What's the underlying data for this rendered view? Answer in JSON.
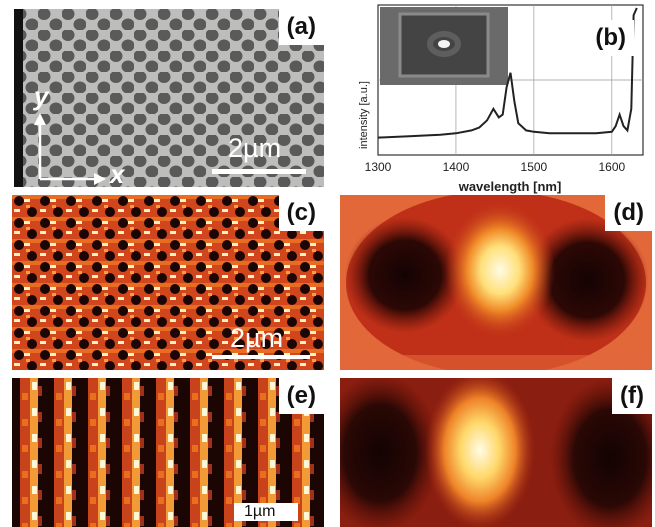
{
  "panels": {
    "a": {
      "label": "(a)",
      "scale_bar": "2µm",
      "axis_x": "x",
      "axis_y": "y"
    },
    "b": {
      "label": "(b)"
    },
    "c": {
      "label": "(c)",
      "scale_bar": "2µm"
    },
    "d": {
      "label": "(d)"
    },
    "e": {
      "label": "(e)",
      "scale_bar": "1µm"
    },
    "f": {
      "label": "(f)"
    }
  },
  "colors": {
    "heat_dark": "#1a0604",
    "heat_mid": "#c0301c",
    "heat_orange": "#e8701c",
    "heat_bright": "#fffae0",
    "sem_bg": "#bcbcba",
    "sem_hole": "#555555"
  },
  "chart_data": {
    "type": "line",
    "xlabel": "wavelength [nm]",
    "ylabel": "intensity [a.u.]",
    "xlim": [
      1300,
      1640
    ],
    "xticks": [
      1300,
      1400,
      1500,
      1600
    ],
    "x": [
      1300,
      1340,
      1380,
      1400,
      1420,
      1430,
      1440,
      1448,
      1455,
      1460,
      1465,
      1470,
      1475,
      1480,
      1490,
      1500,
      1520,
      1540,
      1560,
      1580,
      1600,
      1605,
      1610,
      1615,
      1620,
      1625,
      1628,
      1632
    ],
    "y": [
      0.1,
      0.11,
      0.12,
      0.13,
      0.15,
      0.17,
      0.22,
      0.3,
      0.24,
      0.26,
      0.45,
      0.55,
      0.35,
      0.2,
      0.15,
      0.14,
      0.13,
      0.13,
      0.13,
      0.13,
      0.14,
      0.18,
      0.26,
      0.18,
      0.15,
      0.3,
      0.95,
      1.0
    ],
    "grid": true,
    "inset": "SEM micrograph of cavity"
  }
}
